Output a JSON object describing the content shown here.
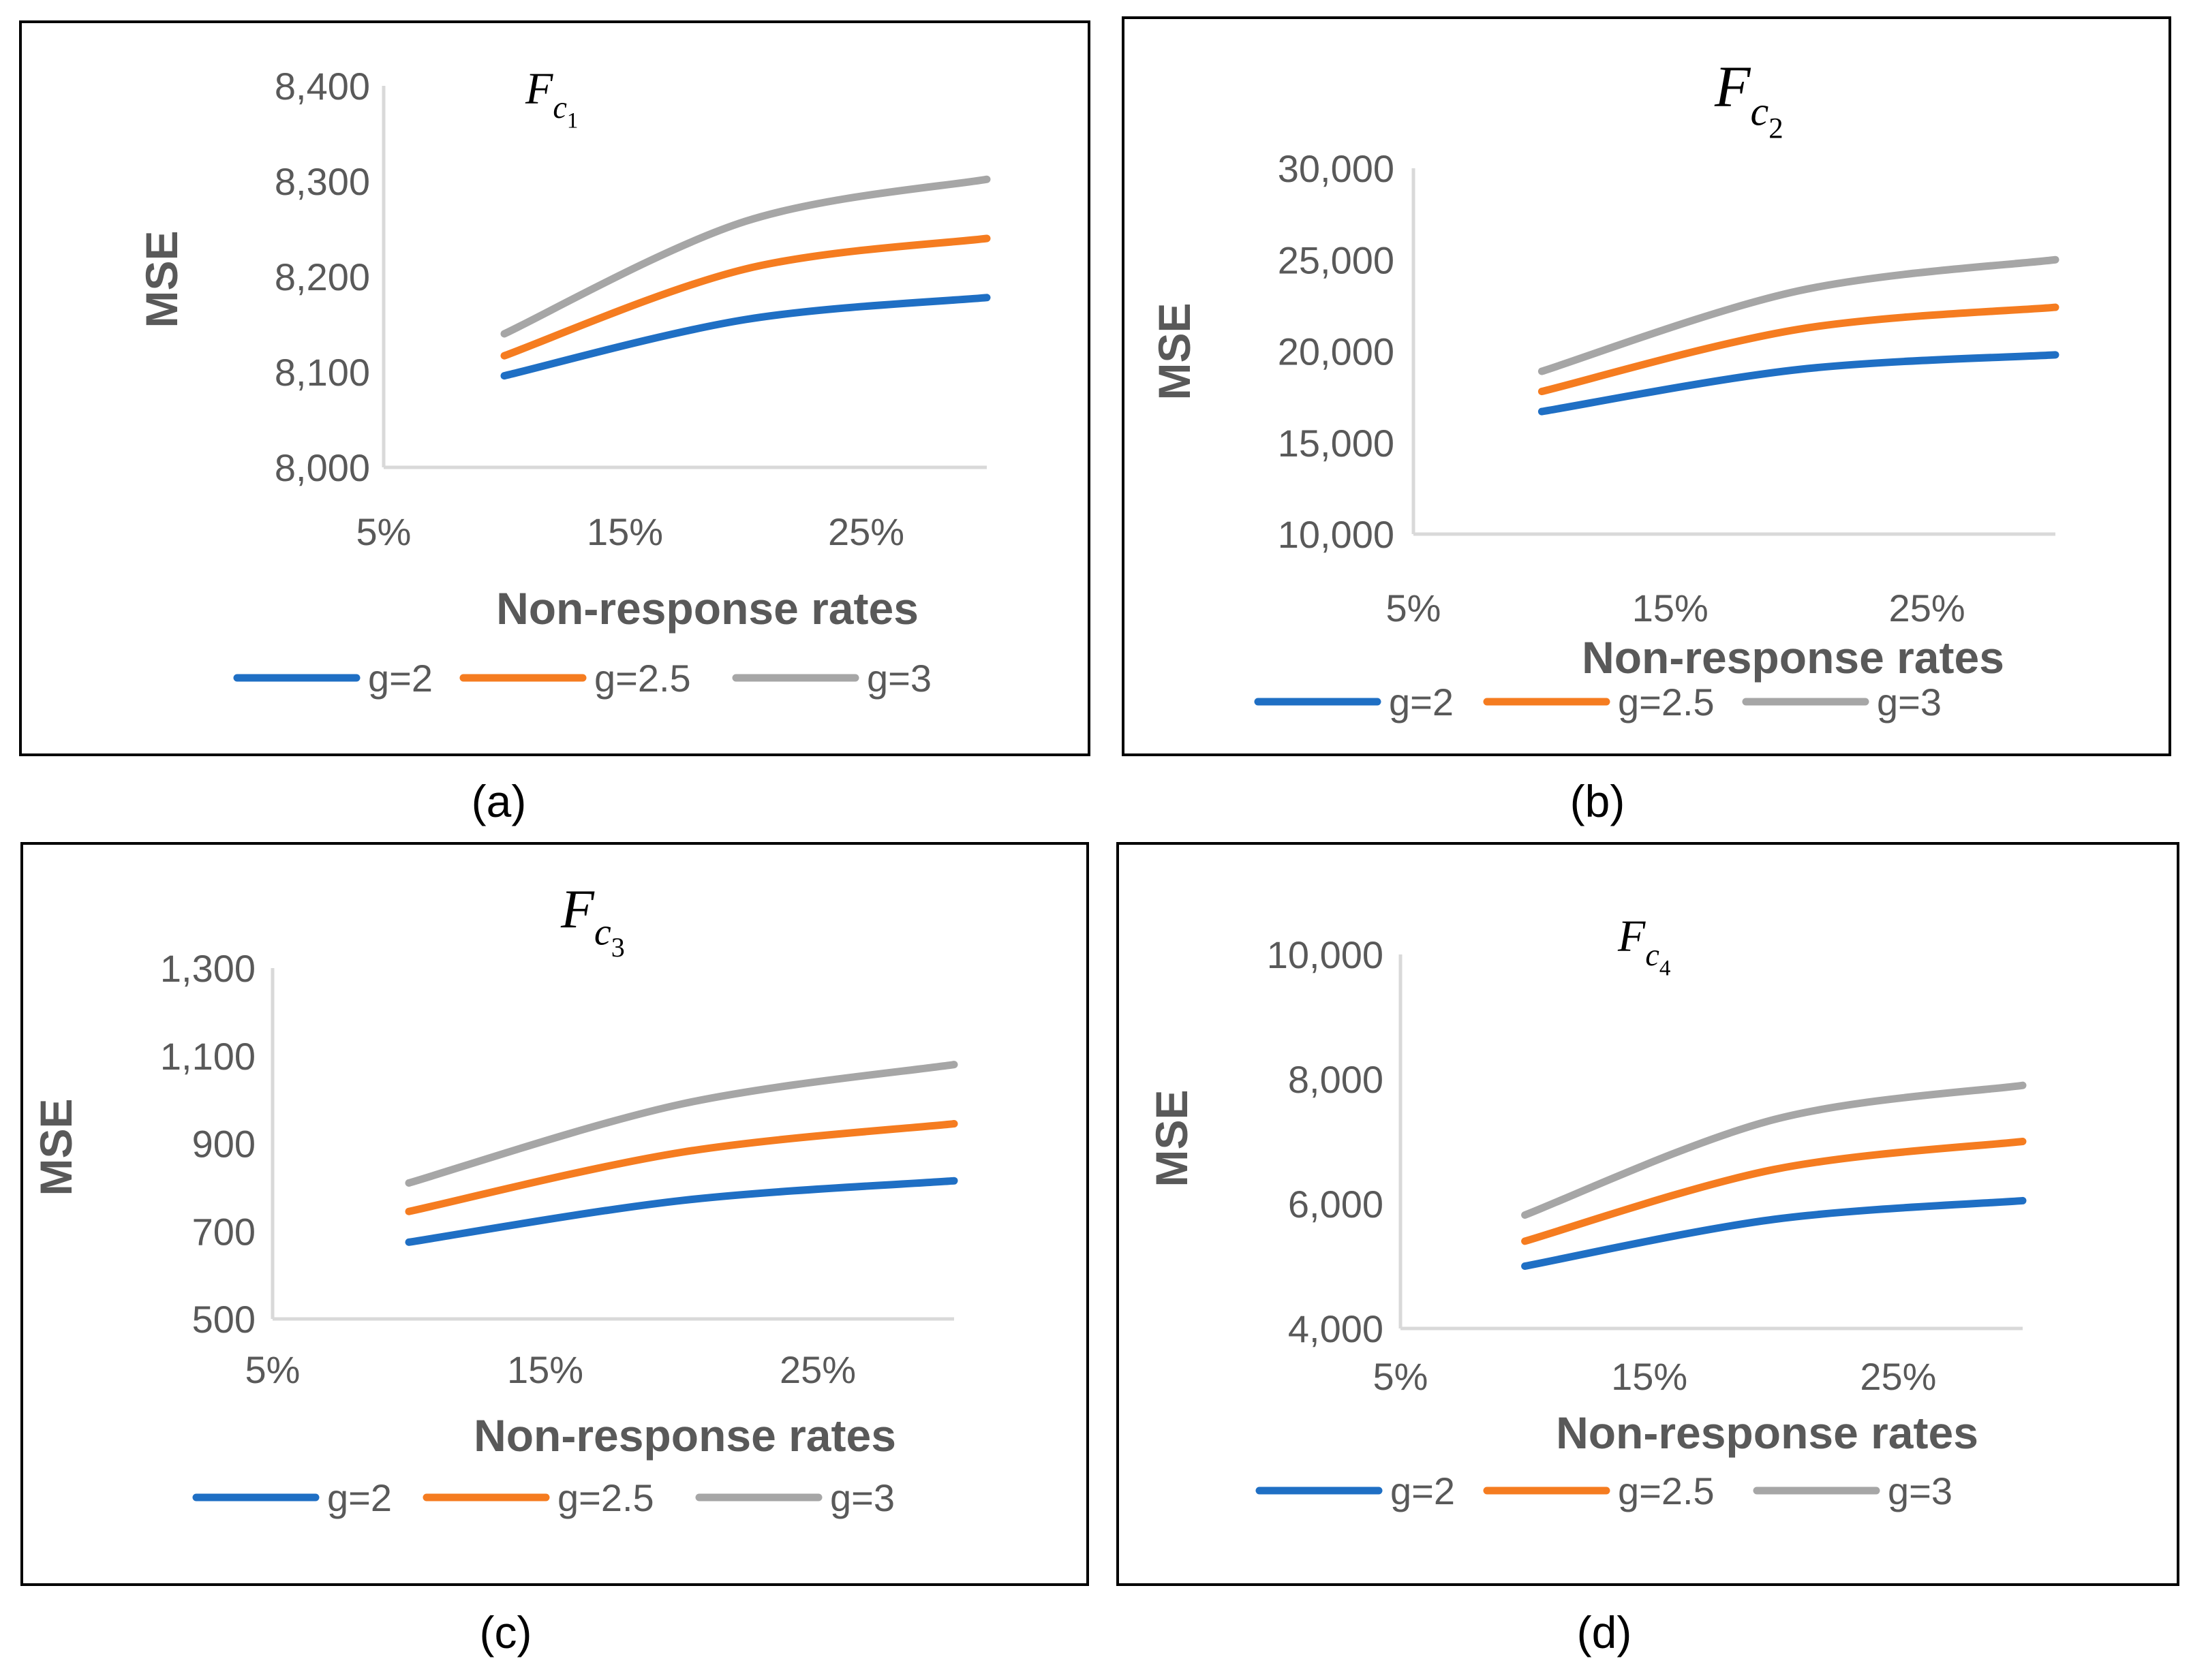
{
  "chart_data": [
    {
      "panel_label": "(a)",
      "type": "line",
      "title": "F",
      "title_sub": "c",
      "title_subsub": "1",
      "xlabel": "Non-response rates",
      "ylabel": "MSE",
      "x_ticks": [
        "5%",
        "15%",
        "25%"
      ],
      "x_values": [
        10,
        20,
        30
      ],
      "xlim": [
        5,
        30
      ],
      "y_ticks": [
        "8,000",
        "8,100",
        "8,200",
        "8,300",
        "8,400"
      ],
      "ylim": [
        8000,
        8400
      ],
      "series": [
        {
          "name": "g=2",
          "color": "#1f6fc4",
          "values": [
            8096,
            8155,
            8178
          ]
        },
        {
          "name": "g=2.5",
          "color": "#f57c20",
          "values": [
            8117,
            8208,
            8240
          ]
        },
        {
          "name": "g=3",
          "color": "#a6a6a6",
          "values": [
            8140,
            8258,
            8302
          ]
        }
      ]
    },
    {
      "panel_label": "(b)",
      "type": "line",
      "title": "F",
      "title_sub": "c",
      "title_subsub": "2",
      "xlabel": "Non-response rates",
      "ylabel": "MSE",
      "x_ticks": [
        "5%",
        "15%",
        "25%"
      ],
      "x_values": [
        10,
        20,
        30
      ],
      "xlim": [
        5,
        30
      ],
      "y_ticks": [
        "10,000",
        "15,000",
        "20,000",
        "25,000",
        "30,000"
      ],
      "ylim": [
        10000,
        30000
      ],
      "series": [
        {
          "name": "g=2",
          "color": "#1f6fc4",
          "values": [
            16700,
            19000,
            19800
          ]
        },
        {
          "name": "g=2.5",
          "color": "#f57c20",
          "values": [
            17800,
            21200,
            22400
          ]
        },
        {
          "name": "g=3",
          "color": "#a6a6a6",
          "values": [
            18900,
            23300,
            25000
          ]
        }
      ]
    },
    {
      "panel_label": "(c)",
      "type": "line",
      "title": "F",
      "title_sub": "c",
      "title_subsub": "3",
      "xlabel": "Non-response rates",
      "ylabel": "MSE",
      "x_ticks": [
        "5%",
        "15%",
        "25%"
      ],
      "x_values": [
        10,
        20,
        30
      ],
      "xlim": [
        5,
        30
      ],
      "y_ticks": [
        "500",
        "700",
        "900",
        "1,100",
        "1,300"
      ],
      "ylim": [
        500,
        1300
      ],
      "series": [
        {
          "name": "g=2",
          "color": "#1f6fc4",
          "values": [
            675,
            770,
            815
          ]
        },
        {
          "name": "g=2.5",
          "color": "#f57c20",
          "values": [
            745,
            880,
            945
          ]
        },
        {
          "name": "g=3",
          "color": "#a6a6a6",
          "values": [
            810,
            990,
            1080
          ]
        }
      ]
    },
    {
      "panel_label": "(d)",
      "type": "line",
      "title": "F",
      "title_sub": "c",
      "title_subsub": "4",
      "xlabel": "Non-response rates",
      "ylabel": "MSE",
      "x_ticks": [
        "5%",
        "15%",
        "25%"
      ],
      "x_values": [
        10,
        20,
        30
      ],
      "xlim": [
        5,
        30
      ],
      "y_ticks": [
        "4,000",
        "6,000",
        "8,000",
        "10,000"
      ],
      "ylim": [
        4000,
        10000
      ],
      "series": [
        {
          "name": "g=2",
          "color": "#1f6fc4",
          "values": [
            5000,
            5750,
            6050
          ]
        },
        {
          "name": "g=2.5",
          "color": "#f57c20",
          "values": [
            5400,
            6550,
            7000
          ]
        },
        {
          "name": "g=3",
          "color": "#a6a6a6",
          "values": [
            5820,
            7350,
            7900
          ]
        }
      ]
    }
  ]
}
